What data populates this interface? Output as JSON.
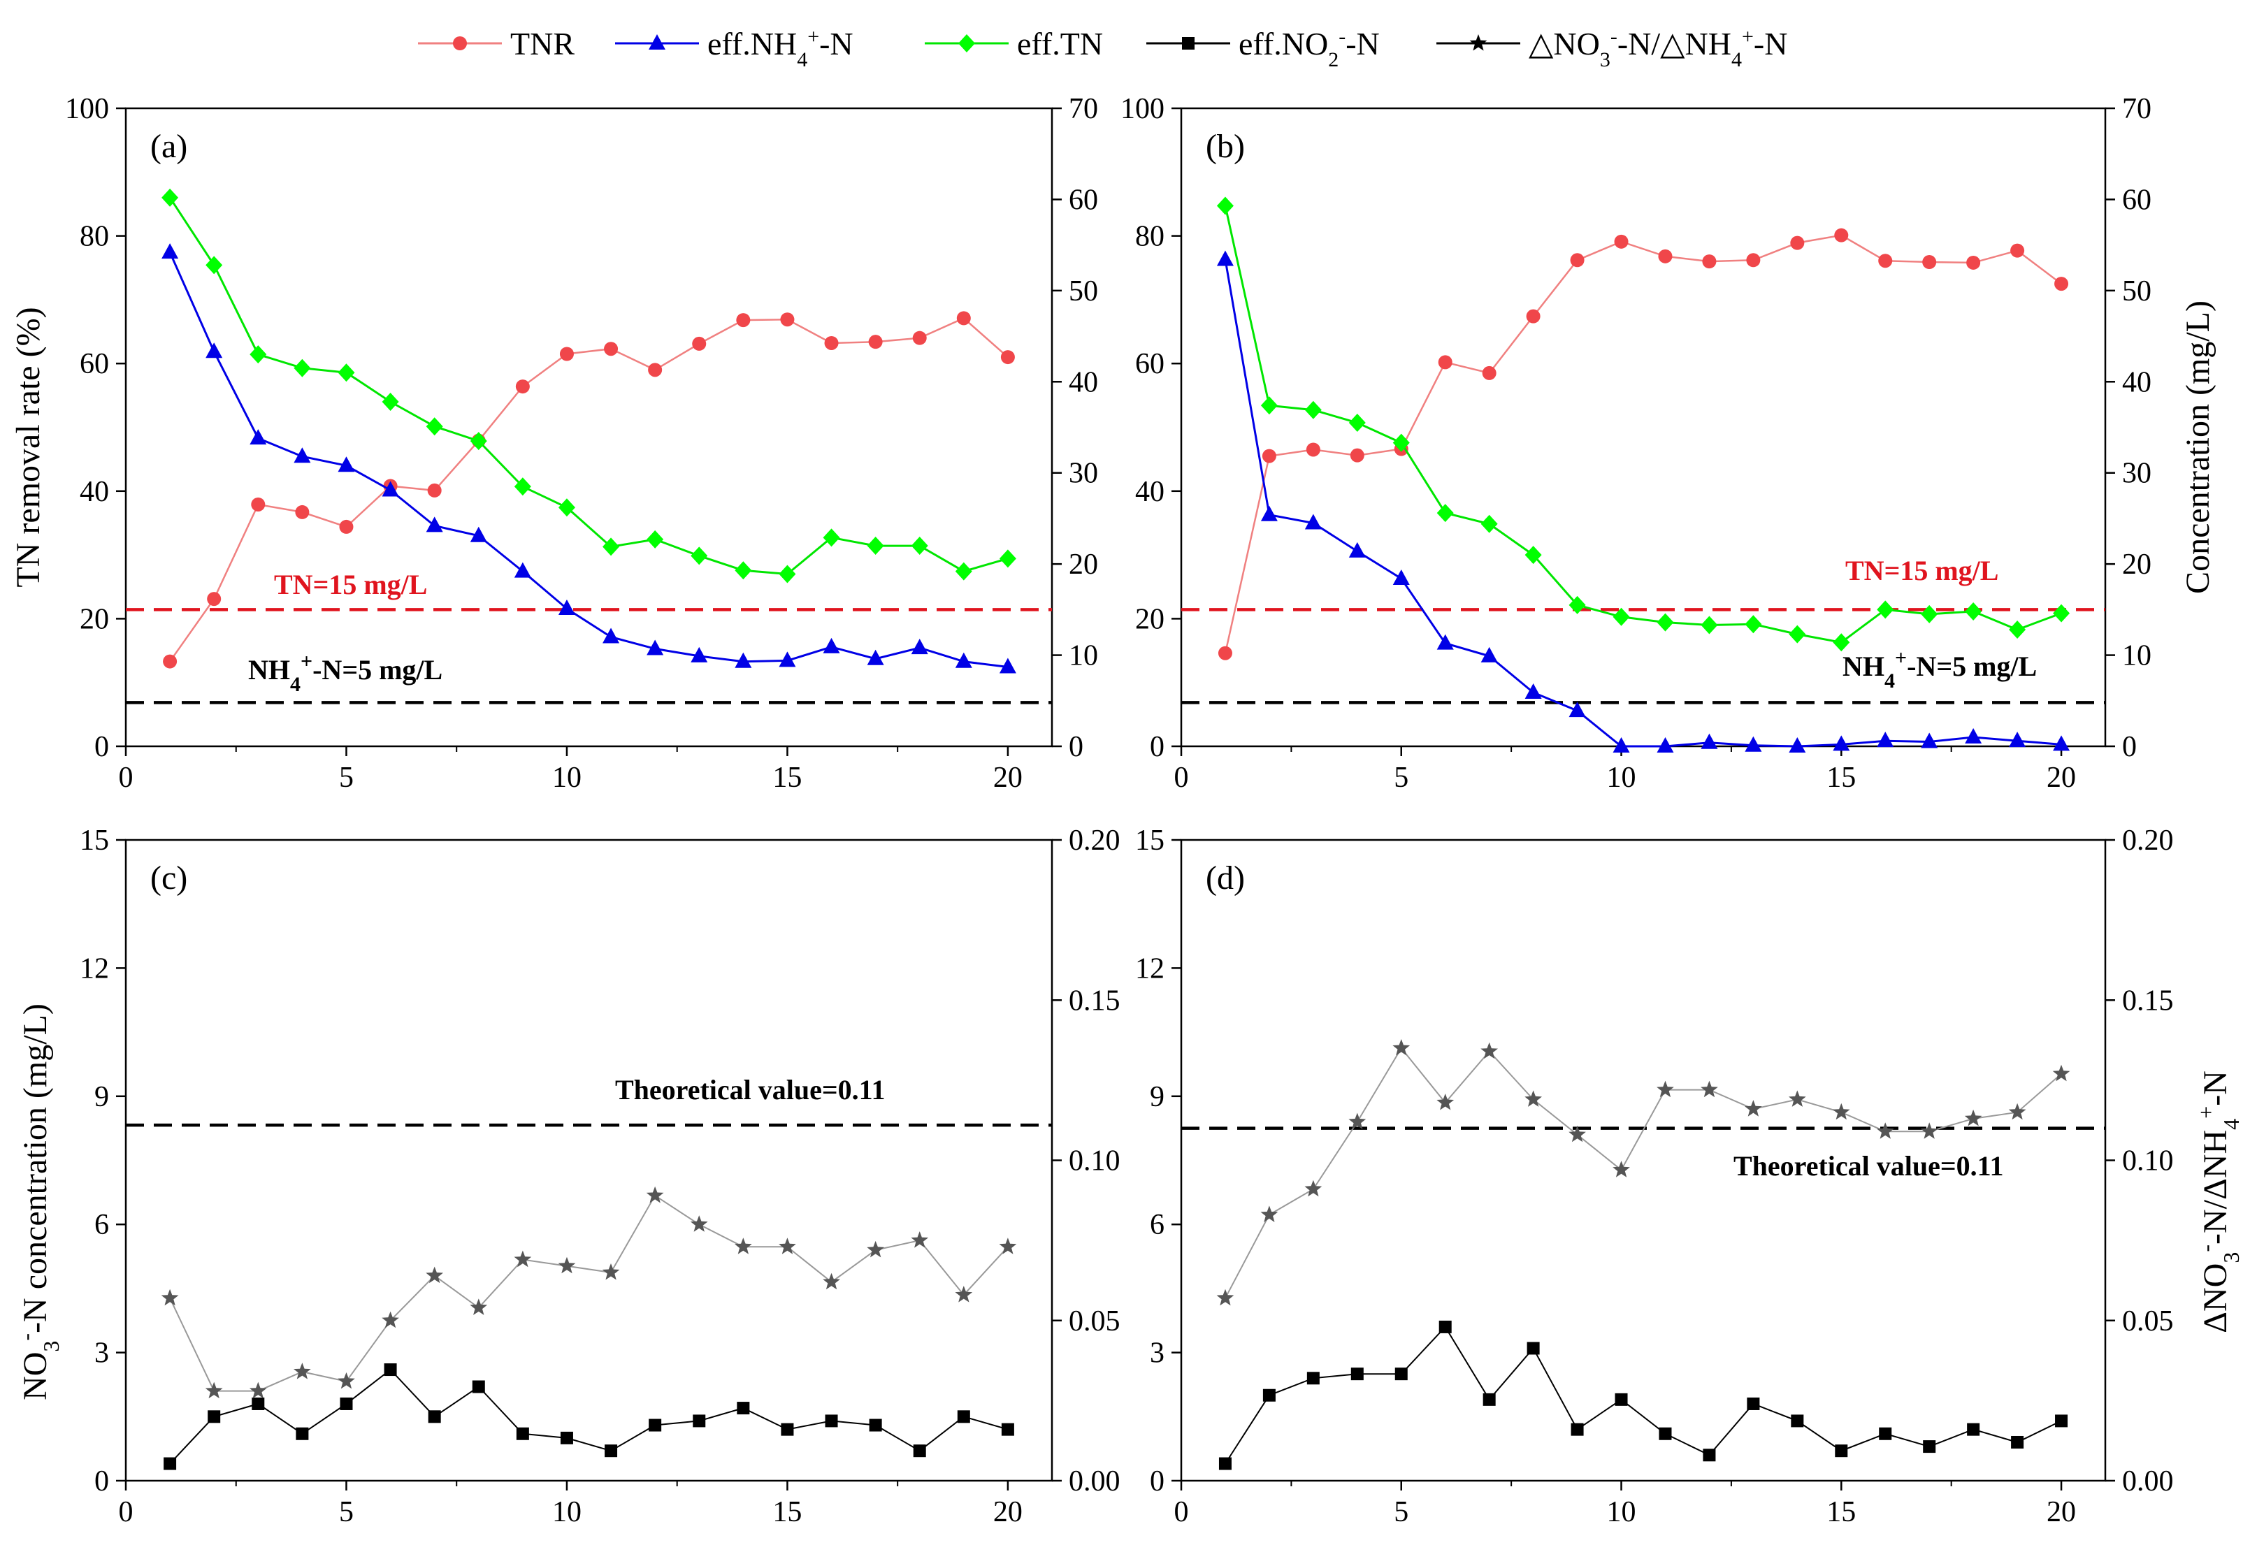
{
  "colors": {
    "tnr": "#f0464a",
    "nh4": "#0000e6",
    "tn": "#00ff00",
    "no2": "#000000",
    "ratio": "#555555",
    "threshold_red": "#e0141e",
    "threshold_black": "#000000"
  },
  "legend": {
    "items": [
      {
        "key": "tnr",
        "label": "TNR",
        "marker": "circle",
        "color": "#f0464a"
      },
      {
        "key": "nh4",
        "label": "eff.NH4+-N",
        "marker": "triangle",
        "color": "#0000e6"
      },
      {
        "key": "tn",
        "label": "eff.TN",
        "marker": "diamond",
        "color": "#00ff00"
      },
      {
        "key": "no2",
        "label": "eff.NO2--N",
        "marker": "square",
        "color": "#000000"
      },
      {
        "key": "ratio",
        "label": "△NO3--N/△NH4+-N",
        "marker": "star",
        "color": "#000000"
      }
    ]
  },
  "annotations": {
    "tn_limit": "TN=15 mg/L",
    "nh4_limit": "NH4+-N=5 mg/L",
    "theoretical": "Theoretical value=0.11"
  },
  "axis_labels": {
    "tnr": "TN removal rate (%)",
    "concentration": "Concentration (mg/L)",
    "no3": "NO3--N concentration (mg/L)",
    "ratio": "ΔNO3--N/ΔNH4+-N"
  },
  "chart_data": [
    {
      "panel": "(a)",
      "type": "line",
      "x": [
        1,
        2,
        3,
        4,
        5,
        6,
        7,
        8,
        9,
        10,
        11,
        12,
        13,
        14,
        15,
        16,
        17,
        18,
        19,
        20
      ],
      "xlim": [
        0,
        21
      ],
      "xticks": [
        0,
        5,
        10,
        15,
        20
      ],
      "ylim_left": [
        0,
        100
      ],
      "yticks_left": [
        0,
        20,
        40,
        60,
        80,
        100
      ],
      "ylabel_left": "TN removal rate (%)",
      "ylim_right": [
        0,
        70
      ],
      "yticks_right": [
        0,
        10,
        20,
        30,
        40,
        50,
        60,
        70
      ],
      "series": [
        {
          "name": "TNR",
          "axis": "left",
          "values": [
            13.3,
            23.1,
            37.9,
            36.7,
            34.4,
            40.8,
            40.1,
            47.9,
            56.4,
            61.5,
            62.3,
            59.0,
            63.1,
            66.8,
            66.9,
            63.2,
            63.4,
            64.0,
            67.1,
            61.0
          ]
        },
        {
          "name": "eff.NH4+-N",
          "axis": "right",
          "values": [
            54.2,
            43.3,
            33.8,
            31.8,
            30.8,
            28.1,
            24.2,
            23.1,
            19.2,
            15.1,
            12.0,
            10.7,
            9.9,
            9.3,
            9.4,
            10.9,
            9.6,
            10.8,
            9.3,
            8.7
          ]
        },
        {
          "name": "eff.TN",
          "axis": "right",
          "values": [
            60.2,
            52.8,
            43.0,
            41.5,
            41.0,
            37.8,
            35.1,
            33.5,
            28.5,
            26.2,
            21.9,
            22.7,
            20.9,
            19.3,
            18.9,
            22.9,
            22.0,
            22.0,
            19.2,
            20.6
          ]
        }
      ],
      "thresholds": [
        {
          "label": "TN=15 mg/L",
          "axis": "right",
          "value": 15,
          "color": "#e0141e"
        },
        {
          "label": "NH4+-N=5 mg/L",
          "axis": "right",
          "value": 4.8,
          "color": "#000000"
        }
      ]
    },
    {
      "panel": "(b)",
      "type": "line",
      "x": [
        1,
        2,
        3,
        4,
        5,
        6,
        7,
        8,
        9,
        10,
        11,
        12,
        13,
        14,
        15,
        16,
        17,
        18,
        19,
        20
      ],
      "xlim": [
        0,
        21
      ],
      "xticks": [
        0,
        5,
        10,
        15,
        20
      ],
      "ylim_left": [
        0,
        100
      ],
      "yticks_left": [
        0,
        20,
        40,
        60,
        80,
        100
      ],
      "ylim_right": [
        0,
        70
      ],
      "yticks_right": [
        0,
        10,
        20,
        30,
        40,
        50,
        60,
        70
      ],
      "ylabel_right": "Concentration (mg/L)",
      "series": [
        {
          "name": "TNR",
          "axis": "left",
          "values": [
            14.6,
            45.5,
            46.5,
            45.6,
            46.6,
            60.2,
            58.5,
            67.4,
            76.2,
            79.1,
            76.8,
            76.0,
            76.2,
            78.9,
            80.1,
            76.1,
            75.9,
            75.8,
            77.7,
            72.5
          ]
        },
        {
          "name": "eff.NH4+-N",
          "axis": "right",
          "values": [
            53.4,
            25.4,
            24.5,
            21.4,
            18.4,
            11.3,
            9.9,
            5.9,
            3.9,
            0.0,
            0.0,
            0.4,
            0.1,
            0.0,
            0.2,
            0.6,
            0.5,
            1.0,
            0.6,
            0.2
          ]
        },
        {
          "name": "eff.TN",
          "axis": "right",
          "values": [
            59.3,
            37.4,
            36.9,
            35.5,
            33.3,
            25.6,
            24.4,
            21.0,
            15.5,
            14.2,
            13.6,
            13.3,
            13.4,
            12.3,
            11.4,
            15.0,
            14.5,
            14.8,
            12.8,
            14.6
          ]
        }
      ],
      "thresholds": [
        {
          "label": "TN=15 mg/L",
          "axis": "right",
          "value": 15,
          "color": "#e0141e"
        },
        {
          "label": "NH4+-N=5 mg/L",
          "axis": "right",
          "value": 4.8,
          "color": "#000000"
        }
      ]
    },
    {
      "panel": "(c)",
      "type": "line",
      "x": [
        1,
        2,
        3,
        4,
        5,
        6,
        7,
        8,
        9,
        10,
        11,
        12,
        13,
        14,
        15,
        16,
        17,
        18,
        19,
        20
      ],
      "xlim": [
        0,
        21
      ],
      "xticks": [
        0,
        5,
        10,
        15,
        20
      ],
      "ylim_left": [
        0,
        15
      ],
      "yticks_left": [
        0,
        3,
        6,
        9,
        12,
        15
      ],
      "ylabel_left": "NO3--N concentration (mg/L)",
      "ylim_right": [
        0,
        0.2
      ],
      "yticks_right": [
        "0.00",
        "0.05",
        "0.10",
        "0.15",
        "0.20"
      ],
      "series": [
        {
          "name": "eff.NO2--N",
          "axis": "left",
          "values": [
            0.4,
            1.5,
            1.8,
            1.1,
            1.8,
            2.6,
            1.5,
            2.2,
            1.1,
            1.0,
            0.7,
            1.3,
            1.4,
            1.7,
            1.2,
            1.4,
            1.3,
            0.7,
            1.5,
            1.2
          ]
        },
        {
          "name": "△NO3--N/△NH4+-N",
          "axis": "right",
          "values": [
            0.057,
            0.028,
            0.028,
            0.034,
            0.031,
            0.05,
            0.064,
            0.054,
            0.069,
            0.067,
            0.065,
            0.089,
            0.08,
            0.073,
            0.073,
            0.062,
            0.072,
            0.075,
            0.058,
            0.073
          ]
        }
      ],
      "thresholds": [
        {
          "label": "Theoretical value=0.11",
          "axis": "right",
          "value": 0.111,
          "color": "#000000"
        }
      ]
    },
    {
      "panel": "(d)",
      "type": "line",
      "x": [
        1,
        2,
        3,
        4,
        5,
        6,
        7,
        8,
        9,
        10,
        11,
        12,
        13,
        14,
        15,
        16,
        17,
        18,
        19,
        20
      ],
      "xlim": [
        0,
        21
      ],
      "xticks": [
        0,
        5,
        10,
        15,
        20
      ],
      "ylim_left": [
        0,
        15
      ],
      "yticks_left": [
        0,
        3,
        6,
        9,
        12,
        15
      ],
      "ylim_right": [
        0,
        0.2
      ],
      "yticks_right": [
        "0.00",
        "0.05",
        "0.10",
        "0.15",
        "0.20"
      ],
      "ylabel_right": "ΔNO3--N/ΔNH4+-N",
      "series": [
        {
          "name": "eff.NO2--N",
          "axis": "left",
          "values": [
            0.4,
            2.0,
            2.4,
            2.5,
            2.5,
            3.6,
            1.9,
            3.1,
            1.2,
            1.9,
            1.1,
            0.6,
            1.8,
            1.4,
            0.7,
            1.1,
            0.8,
            1.2,
            0.9,
            1.4
          ]
        },
        {
          "name": "△NO3--N/△NH4+-N",
          "axis": "right",
          "values": [
            0.057,
            0.083,
            0.091,
            0.112,
            0.135,
            0.118,
            0.134,
            0.119,
            0.108,
            0.097,
            0.122,
            0.122,
            0.116,
            0.119,
            0.115,
            0.109,
            0.109,
            0.113,
            0.115,
            0.127
          ]
        }
      ],
      "thresholds": [
        {
          "label": "Theoretical value=0.11",
          "axis": "right",
          "value": 0.11,
          "color": "#000000"
        }
      ]
    }
  ]
}
